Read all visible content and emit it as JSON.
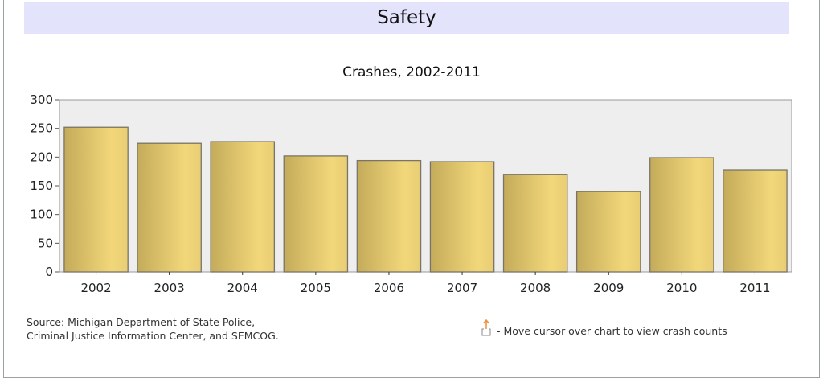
{
  "header": {
    "title": "Safety"
  },
  "chart_data": {
    "type": "bar",
    "title": "Crashes, 2002-2011",
    "xlabel": "",
    "ylabel": "",
    "categories": [
      "2002",
      "2003",
      "2004",
      "2005",
      "2006",
      "2007",
      "2008",
      "2009",
      "2010",
      "2011"
    ],
    "values": [
      252,
      224,
      227,
      202,
      194,
      192,
      170,
      140,
      199,
      178
    ],
    "ylim": [
      0,
      300
    ],
    "yticks": [
      0,
      50,
      100,
      150,
      200,
      250,
      300
    ],
    "grid": false,
    "legend": "none"
  },
  "footer": {
    "source_line1": "Source: Michigan Department of State Police,",
    "source_line2": "Criminal Justice Information Center, and SEMCOG.",
    "hint": "- Move cursor over chart to view crash counts"
  },
  "colors": {
    "bar_dark": "#c4ab5a",
    "bar_light": "#f2d77a",
    "plot_bg": "#eeeeee",
    "header_bg": "#e3e4fb",
    "icon": "#e8923a"
  }
}
